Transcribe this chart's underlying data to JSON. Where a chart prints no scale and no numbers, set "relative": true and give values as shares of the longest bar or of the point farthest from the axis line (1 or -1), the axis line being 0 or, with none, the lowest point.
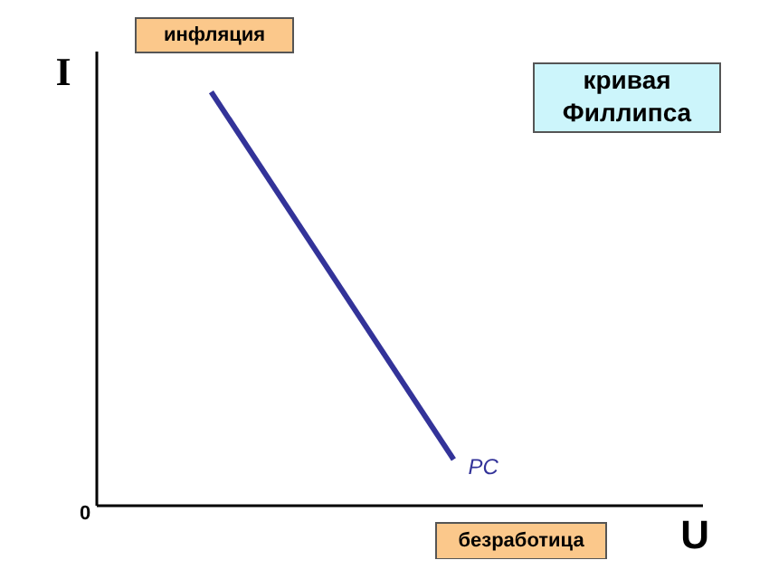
{
  "chart_data": {
    "type": "line",
    "title": "кривая Филлипса",
    "xlabel": "U",
    "ylabel": "I",
    "relative": true,
    "categories": [
      null,
      null
    ],
    "series": [
      {
        "name": "PC",
        "color": "#333399",
        "values": [
          1,
          0.11
        ]
      }
    ],
    "annotations": [
      "инфляция",
      "безработица",
      "0"
    ],
    "legend": false,
    "tick_labels": false,
    "grid": false
  }
}
